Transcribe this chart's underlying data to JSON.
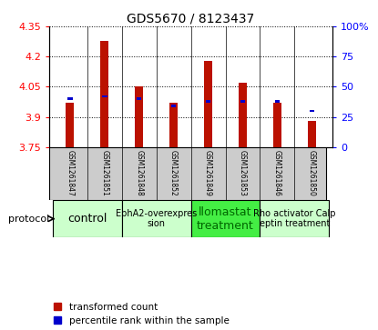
{
  "title": "GDS5670 / 8123437",
  "samples": [
    "GSM1261847",
    "GSM1261851",
    "GSM1261848",
    "GSM1261852",
    "GSM1261849",
    "GSM1261853",
    "GSM1261846",
    "GSM1261850"
  ],
  "red_values": [
    3.97,
    4.28,
    4.05,
    3.97,
    4.18,
    4.07,
    3.97,
    3.88
  ],
  "blue_percentile": [
    40,
    42,
    40,
    34,
    38,
    38,
    38,
    30
  ],
  "ylim": [
    3.75,
    4.35
  ],
  "ylim_right": [
    0,
    100
  ],
  "yticks_left": [
    3.75,
    3.9,
    4.05,
    4.2,
    4.35
  ],
  "yticks_right": [
    0,
    25,
    50,
    75,
    100
  ],
  "protocol_groups": [
    {
      "label": "control",
      "start": 0,
      "end": 2,
      "color": "#ccffcc",
      "text_color": "#000000",
      "fontsize": 9
    },
    {
      "label": "EphA2-overexpres\nsion",
      "start": 2,
      "end": 4,
      "color": "#ccffcc",
      "text_color": "#000000",
      "fontsize": 7
    },
    {
      "label": "llomastat\ntreatment",
      "start": 4,
      "end": 6,
      "color": "#44ee44",
      "text_color": "#006600",
      "fontsize": 9
    },
    {
      "label": "Rho activator Calp\neptin treatment",
      "start": 6,
      "end": 8,
      "color": "#ccffcc",
      "text_color": "#000000",
      "fontsize": 7
    }
  ],
  "red_color": "#bb1100",
  "blue_color": "#0000cc",
  "bar_width": 0.25,
  "background_color": "#ffffff",
  "sample_bg_color": "#cccccc",
  "legend_labels": [
    "transformed count",
    "percentile rank within the sample"
  ]
}
